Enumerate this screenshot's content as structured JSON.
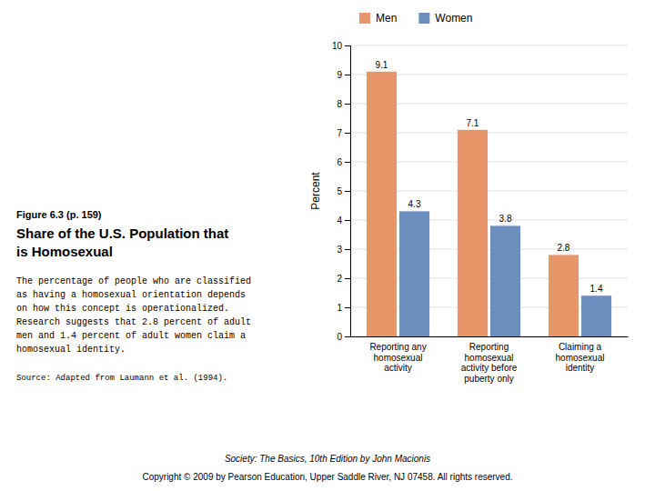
{
  "chart_data": {
    "type": "bar",
    "title": "Share of the U.S. Population that\nis Homosexual",
    "categories": [
      "Reporting any\nhomosexual\nactivity",
      "Reporting\nhomosexual\nactivity before\npuberty only",
      "Claiming a\nhomosexual\nidentity"
    ],
    "series": [
      {
        "name": "Men",
        "color": "#E8956A",
        "values": [
          9.1,
          7.1,
          2.8
        ]
      },
      {
        "name": "Women",
        "color": "#6B8FBF",
        "values": [
          4.3,
          3.8,
          1.4
        ]
      }
    ],
    "y_label": "Percent",
    "ylim": [
      0,
      10
    ],
    "yticks": [
      0,
      1,
      2,
      3,
      4,
      5,
      6,
      7,
      8,
      9,
      10
    ],
    "grid": true,
    "legend": "top",
    "data_labels": true,
    "annotations": [
      "Figure 6.3  (p. 159)",
      "The percentage of people who are classified\nas having a homosexual orientation depends\non how this concept is operationalized.\nResearch suggests that 2.8 percent of adult\nmen and 1.4 percent of adult women claim a\nhomosexual identity.",
      "Source: Adapted from Laumann et al. (1994).",
      "Society: The Basics, 10th Edition by John Macionis",
      "Copyright ©  2009 by Pearson Education, Upper Saddle River, NJ  07458.  All rights reserved."
    ]
  }
}
